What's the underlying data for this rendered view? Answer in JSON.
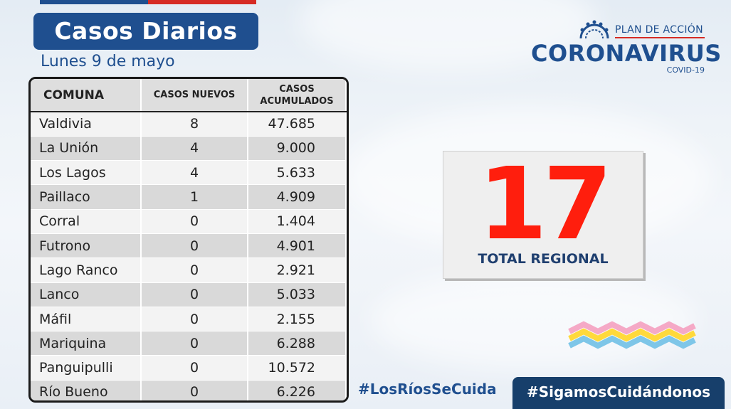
{
  "header": {
    "title": "Casos Diarios",
    "date": "Lunes 9 de mayo"
  },
  "logo": {
    "plan": "PLAN DE ACCIÓN",
    "main": "CORONAVIRUS",
    "covid": "COVID-19",
    "icon": "virus-icon"
  },
  "table": {
    "headers": [
      "COMUNA",
      "CASOS NUEVOS",
      "CASOS ACUMULADOS"
    ],
    "rows": [
      {
        "comuna": "Valdivia",
        "nuevos": "8",
        "acumulados": "47.685"
      },
      {
        "comuna": "La Unión",
        "nuevos": "4",
        "acumulados": "9.000"
      },
      {
        "comuna": "Los Lagos",
        "nuevos": "4",
        "acumulados": "5.633"
      },
      {
        "comuna": "Paillaco",
        "nuevos": "1",
        "acumulados": "4.909"
      },
      {
        "comuna": "Corral",
        "nuevos": "0",
        "acumulados": "1.404"
      },
      {
        "comuna": "Futrono",
        "nuevos": "0",
        "acumulados": "4.901"
      },
      {
        "comuna": "Lago Ranco",
        "nuevos": "0",
        "acumulados": "2.921"
      },
      {
        "comuna": "Lanco",
        "nuevos": "0",
        "acumulados": "5.033"
      },
      {
        "comuna": "Máfil",
        "nuevos": "0",
        "acumulados": "2.155"
      },
      {
        "comuna": "Mariquina",
        "nuevos": "0",
        "acumulados": "6.288"
      },
      {
        "comuna": "Panguipulli",
        "nuevos": "0",
        "acumulados": "10.572"
      },
      {
        "comuna": "Río Bueno",
        "nuevos": "0",
        "acumulados": "6.226"
      }
    ]
  },
  "total": {
    "value": "17",
    "label": "TOTAL REGIONAL"
  },
  "footer": {
    "hashtag_left": "#LosRíosSeCuida",
    "hashtag_right": "#SigamosCuidándonos"
  },
  "colors": {
    "brand_blue": "#1f4f8f",
    "brand_red": "#d62b24",
    "total_red": "#ff1e0d"
  }
}
